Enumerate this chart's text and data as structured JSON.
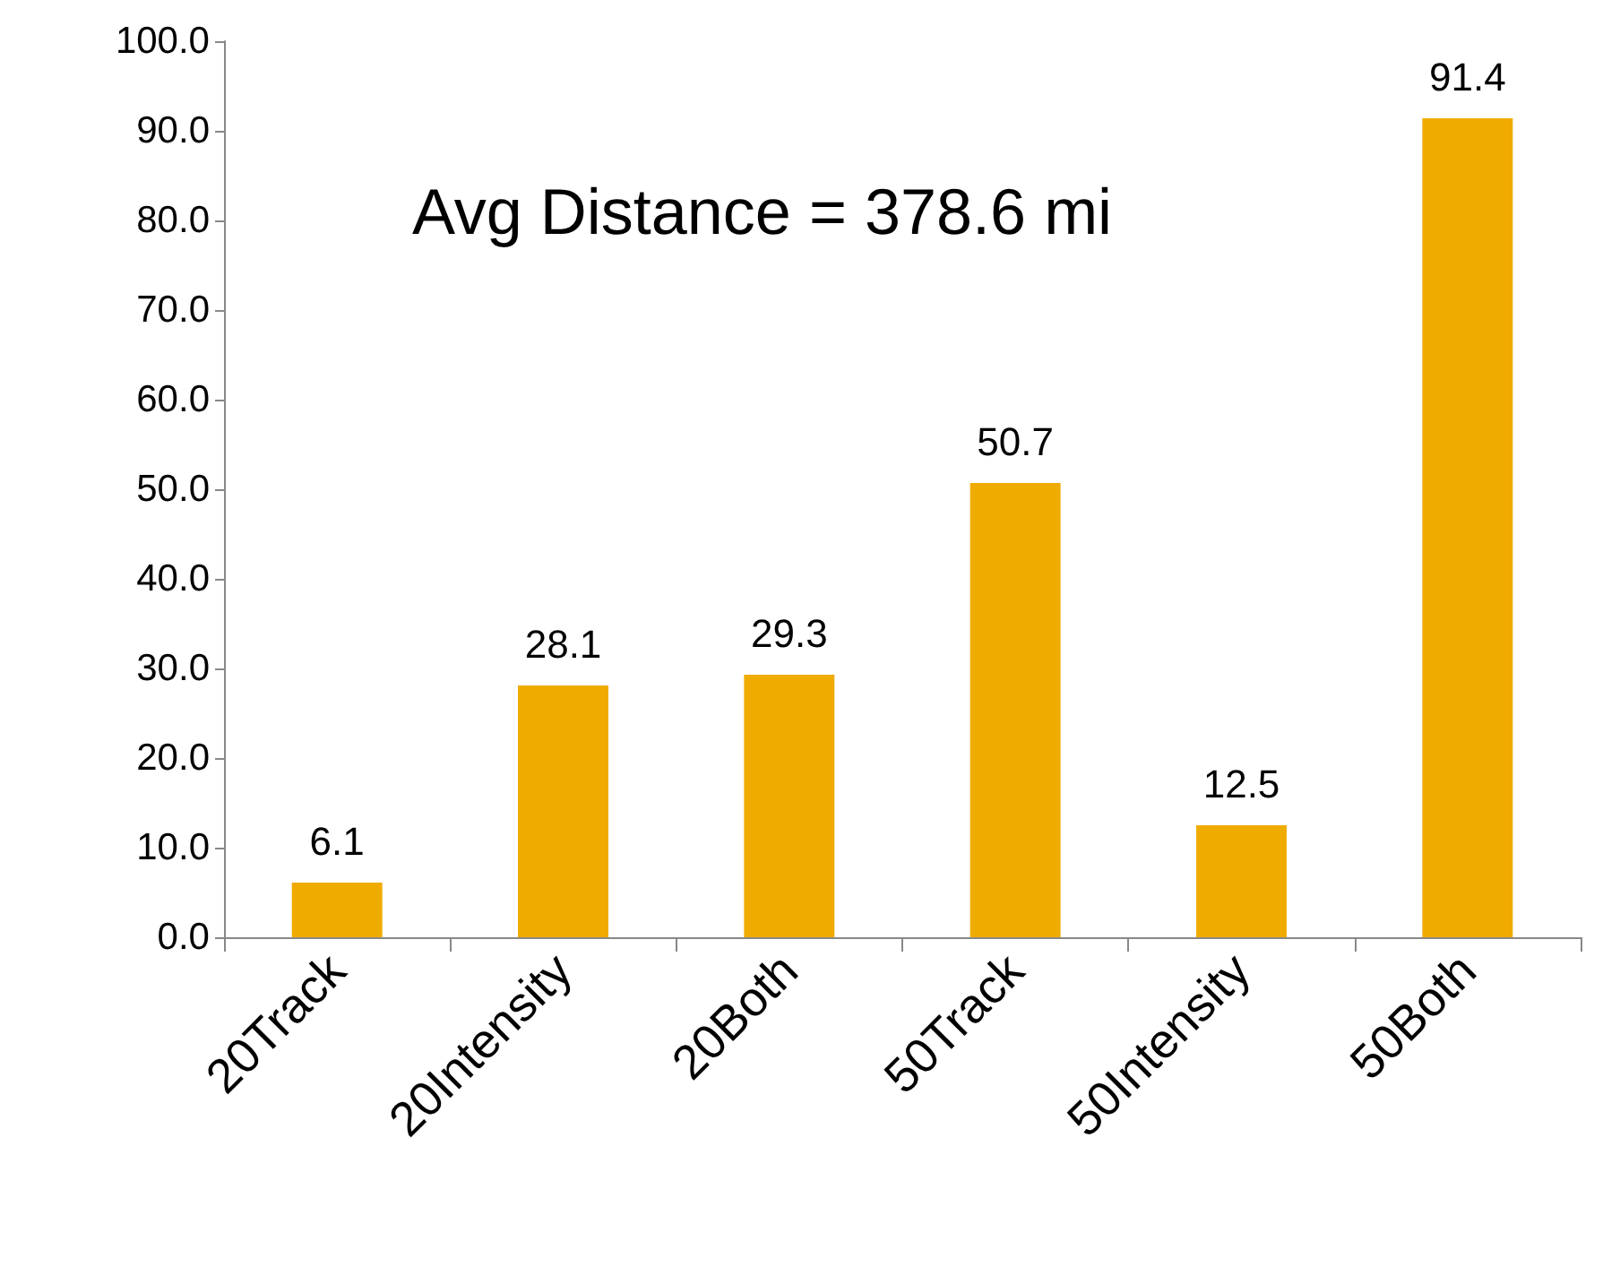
{
  "chart_data": {
    "type": "bar",
    "categories": [
      "20Track",
      "20Intensity",
      "20Both",
      "50Track",
      "50Intensity",
      "50Both"
    ],
    "values": [
      6.1,
      28.1,
      29.3,
      50.7,
      12.5,
      91.4
    ],
    "color": "#f0ab00",
    "ylim": [
      0,
      100
    ],
    "yticks": [
      {
        "value": 0,
        "label": "0.0"
      },
      {
        "value": 10,
        "label": "10.0"
      },
      {
        "value": 20,
        "label": "20.0"
      },
      {
        "value": 30,
        "label": "30.0"
      },
      {
        "value": 40,
        "label": "40.0"
      },
      {
        "value": 50,
        "label": "50.0"
      },
      {
        "value": 60,
        "label": "60.0"
      },
      {
        "value": 70,
        "label": "70.0"
      },
      {
        "value": 80,
        "label": "80.0"
      },
      {
        "value": 90,
        "label": "90.0"
      },
      {
        "value": 100,
        "label": "100.0"
      }
    ],
    "data_labels": true,
    "annotations": [
      "Avg Distance = 378.6 mi"
    ]
  }
}
